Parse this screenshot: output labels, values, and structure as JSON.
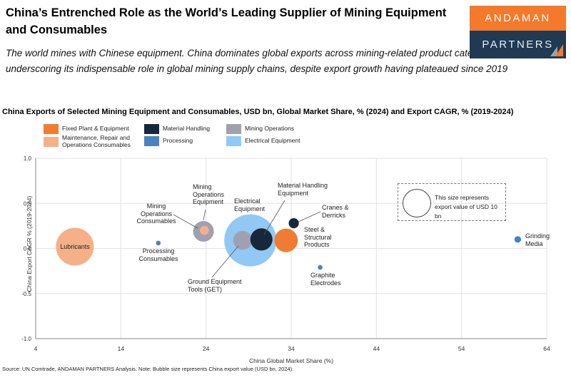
{
  "header": {
    "title": "China’s Entrenched Role as the World’s Leading Supplier of Mining Equipment and Consumables",
    "subtitle": "The world mines with Chinese equipment. China dominates global exports across mining-related product categories, underscoring its indispensable role in global mining supply chains, despite export growth having plateaued since 2019",
    "logo": {
      "line1": "ANDAMAN",
      "line2": "PARTNERS",
      "orange_color": "#F4792B",
      "navy_color": "#1F3A52",
      "triangle_gray": "#9AA2AC",
      "triangle_orange": "#F4792B"
    }
  },
  "chart": {
    "title": "China Exports of Selected Mining Equipment and Consumables, USD bn, Global Market Share, % (2024) and Export CAGR, % (2019-2024)",
    "x_axis_title": "China Global Market Share (%)",
    "y_axis_title": "China Export CAGR % (2019-2024)",
    "size_legend": {
      "line1": "This size represents",
      "line2": "export value of USD 10 bn",
      "value_bn": 10
    },
    "source": "Source: UN Comtrade, ANDAMAN PARTNERS Analysis. Note: Bubble size represents China export value (USD bn, 2024)."
  },
  "chart_data": {
    "type": "scatter",
    "subtype": "bubble",
    "title": "China Exports of Selected Mining Equipment and Consumables, USD bn, Global Market Share, % (2024) and Export CAGR, % (2019-2024)",
    "xlabel": "China Global Market Share (%)",
    "ylabel": "China Export CAGR % (2019-2024)",
    "xlim": [
      4,
      64
    ],
    "ylim": [
      -1.0,
      1.0
    ],
    "x_ticks": [
      4,
      14,
      24,
      34,
      44,
      54,
      64
    ],
    "y_ticks": [
      1.0,
      0.5,
      0.0,
      -0.5,
      -1.0
    ],
    "grid": true,
    "legend_position": "top",
    "legend": [
      {
        "label": "Fixed Plant & Equipment",
        "color": "#F07C33"
      },
      {
        "label": "Material Handling",
        "color": "#16293C"
      },
      {
        "label": "Mining Operations",
        "color": "#A0A1B0"
      },
      {
        "label": "Maintenance, Repair and Operations Consumables",
        "color": "#F5B088"
      },
      {
        "label": "Processing",
        "color": "#4983BF"
      },
      {
        "label": "Electrical Equipment",
        "color": "#92C8F4"
      }
    ],
    "bubbles": [
      {
        "id": "lubricants",
        "label": "Lubricants",
        "category": "Maintenance, Repair and Operations Consumables",
        "x": 8.6,
        "y": 0.02,
        "value_bn": 19.5
      },
      {
        "id": "processing-consumables",
        "label": "Processing Consumables",
        "category": "Processing",
        "x": 18.4,
        "y": 0.06,
        "value_bn": 0.3
      },
      {
        "id": "mining-operations-equipment",
        "label": "Mining Operations Equipment",
        "category": "Mining Operations",
        "x": 23.7,
        "y": 0.19,
        "value_bn": 5.8
      },
      {
        "id": "mining-operations-consumables",
        "label": "Mining Operations Consumables",
        "category": "Maintenance, Repair and Operations Consumables",
        "x": 23.8,
        "y": 0.2,
        "value_bn": 1.1
      },
      {
        "id": "electrical-equipment",
        "label": "Electrical Equipment",
        "category": "Electrical Equipment",
        "x": 29.2,
        "y": 0.09,
        "value_bn": 37
      },
      {
        "id": "ground-equipment-tools",
        "label": "Ground Equipment Tools (GET)",
        "category": "Mining Operations",
        "x": 28.3,
        "y": 0.09,
        "value_bn": 4.9
      },
      {
        "id": "material-handling-equipment",
        "label": "Material Handling Equipment",
        "category": "Material Handling",
        "x": 30.5,
        "y": 0.1,
        "value_bn": 6.7
      },
      {
        "id": "steel-structural-products",
        "label": "Steel & Structural Products",
        "category": "Fixed Plant & Equipment",
        "x": 33.4,
        "y": 0.09,
        "value_bn": 7.5
      },
      {
        "id": "cranes-derricks",
        "label": "Cranes & Derricks",
        "category": "Material Handling",
        "x": 34.3,
        "y": 0.28,
        "value_bn": 1.4
      },
      {
        "id": "graphite-electrodes",
        "label": "Graphite Electrodes",
        "category": "Processing",
        "x": 37.4,
        "y": -0.21,
        "value_bn": 0.3
      },
      {
        "id": "grinding-media",
        "label": "Grinding Media",
        "category": "Processing",
        "x": 60.6,
        "y": 0.1,
        "value_bn": 0.6
      }
    ]
  }
}
